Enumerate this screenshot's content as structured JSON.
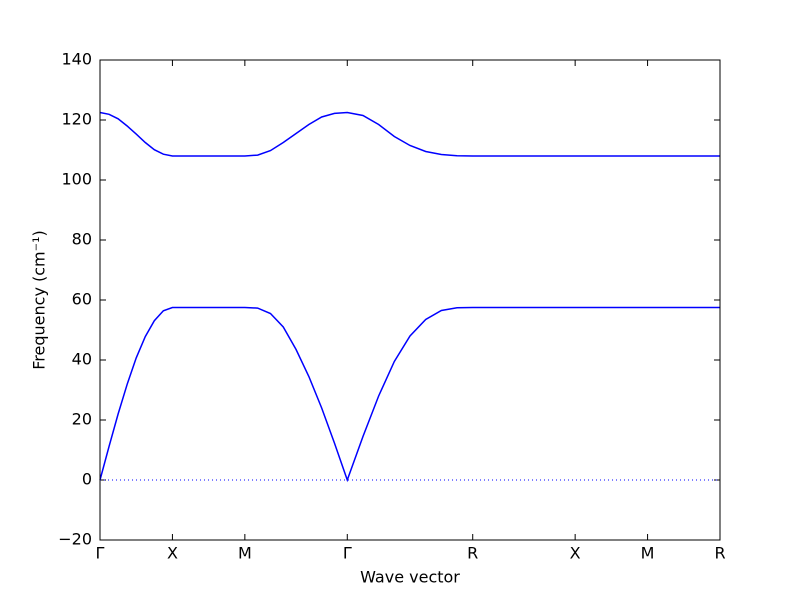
{
  "chart_data": {
    "type": "line",
    "xlabel": "Wave vector",
    "ylabel": "Frequency (cm⁻¹)",
    "x": [
      0,
      0.0625,
      0.125,
      0.1875,
      0.25,
      0.3125,
      0.375,
      0.4375,
      0.5,
      1.0,
      1.0884,
      1.1768,
      1.2652,
      1.3536,
      1.4419,
      1.5303,
      1.6187,
      1.7071,
      1.8154,
      1.9236,
      2.0319,
      2.1401,
      2.2484,
      2.3566,
      2.4649,
      2.5731,
      3.2802,
      3.7802,
      4.2802
    ],
    "series": [
      {
        "color": "#0000ff",
        "values": [
          0,
          11.2,
          22.0,
          31.9,
          40.7,
          47.8,
          53.1,
          56.4,
          57.5,
          57.5,
          57.3,
          55.5,
          51.0,
          43.5,
          34.5,
          24.0,
          12.3,
          0,
          14.5,
          28,
          39.5,
          48,
          53.5,
          56.5,
          57.4,
          57.5,
          57.5,
          57.5,
          57.5
        ]
      },
      {
        "color": "#0000ff",
        "values": [
          122.5,
          121.9,
          120.4,
          118.0,
          115.3,
          112.5,
          110.1,
          108.6,
          108.0,
          108.0,
          108.3,
          109.8,
          112.5,
          115.5,
          118.5,
          121.0,
          122.2,
          122.5,
          121.5,
          118.5,
          114.5,
          111.5,
          109.5,
          108.5,
          108.1,
          108.0,
          108,
          108,
          108
        ]
      }
    ],
    "xlim": [
      0,
      4.2802
    ],
    "xticks": [
      {
        "value": 0,
        "label": "Γ"
      },
      {
        "value": 0.5,
        "label": "X"
      },
      {
        "value": 1.0,
        "label": "M"
      },
      {
        "value": 1.7071,
        "label": "Γ"
      },
      {
        "value": 2.5731,
        "label": "R"
      },
      {
        "value": 3.2802,
        "label": "X"
      },
      {
        "value": 3.7802,
        "label": "M"
      },
      {
        "value": 4.2802,
        "label": "R"
      }
    ],
    "ylim": [
      -20,
      140
    ],
    "yticks": [
      {
        "value": -20,
        "label": "−20"
      },
      0,
      20,
      40,
      60,
      80,
      100,
      120,
      140
    ],
    "hlines": [
      0
    ],
    "hline_color": "#0000ff"
  }
}
